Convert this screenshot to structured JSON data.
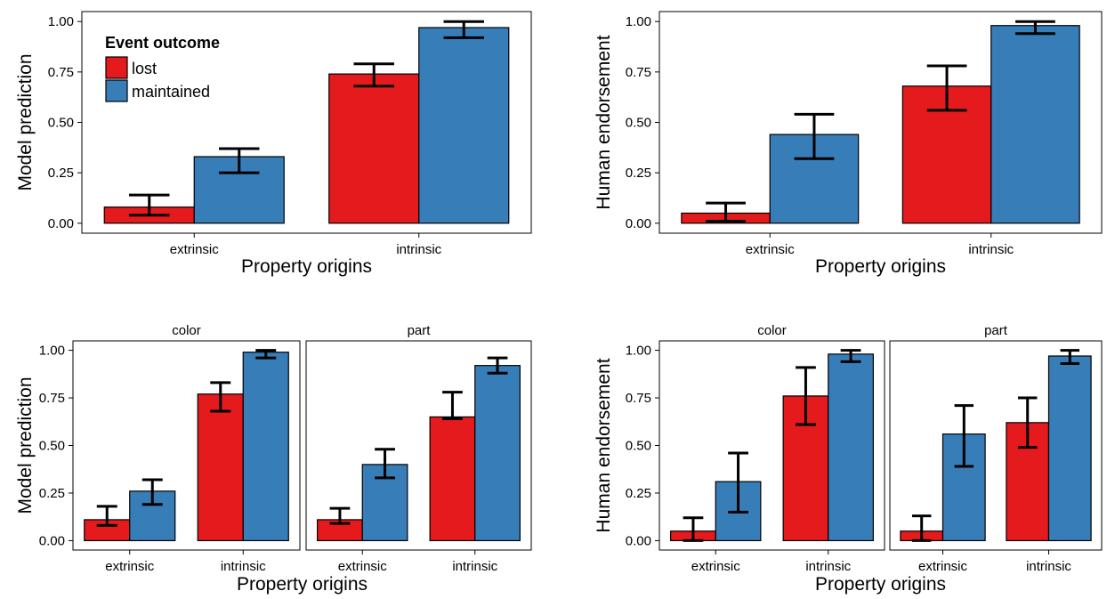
{
  "colors": {
    "lost": "#e41a1c",
    "maintained": "#377eb8"
  },
  "legend": {
    "title": "Event outcome",
    "items": [
      "lost",
      "maintained"
    ]
  },
  "chart_data": [
    {
      "type": "bar",
      "id": "top-left",
      "ylabel": "Model prediction",
      "xlabel": "Property origins",
      "ylim": [
        0,
        1
      ],
      "yticks": [
        "0.00",
        "0.25",
        "0.50",
        "0.75",
        "1.00"
      ],
      "legend_placement": "top-left",
      "facets": [
        {
          "strip": "",
          "categories": [
            "extrinsic",
            "intrinsic"
          ],
          "series": [
            {
              "name": "lost",
              "values": [
                0.08,
                0.74
              ],
              "err_low": [
                0.04,
                0.68
              ],
              "err_high": [
                0.14,
                0.79
              ]
            },
            {
              "name": "maintained",
              "values": [
                0.33,
                0.97
              ],
              "err_low": [
                0.25,
                0.92
              ],
              "err_high": [
                0.37,
                1.0
              ]
            }
          ]
        }
      ]
    },
    {
      "type": "bar",
      "id": "top-right",
      "ylabel": "Human endorsement",
      "xlabel": "Property origins",
      "ylim": [
        0,
        1
      ],
      "yticks": [
        "0.00",
        "0.25",
        "0.50",
        "0.75",
        "1.00"
      ],
      "facets": [
        {
          "strip": "",
          "categories": [
            "extrinsic",
            "intrinsic"
          ],
          "series": [
            {
              "name": "lost",
              "values": [
                0.05,
                0.68
              ],
              "err_low": [
                0.01,
                0.56
              ],
              "err_high": [
                0.1,
                0.78
              ]
            },
            {
              "name": "maintained",
              "values": [
                0.44,
                0.98
              ],
              "err_low": [
                0.32,
                0.94
              ],
              "err_high": [
                0.54,
                1.0
              ]
            }
          ]
        }
      ]
    },
    {
      "type": "bar",
      "id": "bottom-left",
      "ylabel": "Model prediction",
      "xlabel": "Property origins",
      "ylim": [
        0,
        1
      ],
      "yticks": [
        "0.00",
        "0.25",
        "0.50",
        "0.75",
        "1.00"
      ],
      "facets": [
        {
          "strip": "color",
          "categories": [
            "extrinsic",
            "intrinsic"
          ],
          "series": [
            {
              "name": "lost",
              "values": [
                0.11,
                0.77
              ],
              "err_low": [
                0.08,
                0.68
              ],
              "err_high": [
                0.18,
                0.83
              ]
            },
            {
              "name": "maintained",
              "values": [
                0.26,
                0.99
              ],
              "err_low": [
                0.19,
                0.96
              ],
              "err_high": [
                0.32,
                1.0
              ]
            }
          ]
        },
        {
          "strip": "part",
          "categories": [
            "extrinsic",
            "intrinsic"
          ],
          "series": [
            {
              "name": "lost",
              "values": [
                0.11,
                0.65
              ],
              "err_low": [
                0.09,
                0.64
              ],
              "err_high": [
                0.17,
                0.78
              ]
            },
            {
              "name": "maintained",
              "values": [
                0.4,
                0.92
              ],
              "err_low": [
                0.33,
                0.88
              ],
              "err_high": [
                0.48,
                0.96
              ]
            }
          ]
        }
      ]
    },
    {
      "type": "bar",
      "id": "bottom-right",
      "ylabel": "Human endorsement",
      "xlabel": "Property origins",
      "ylim": [
        0,
        1
      ],
      "yticks": [
        "0.00",
        "0.25",
        "0.50",
        "0.75",
        "1.00"
      ],
      "facets": [
        {
          "strip": "color",
          "categories": [
            "extrinsic",
            "intrinsic"
          ],
          "series": [
            {
              "name": "lost",
              "values": [
                0.05,
                0.76
              ],
              "err_low": [
                0.0,
                0.61
              ],
              "err_high": [
                0.12,
                0.91
              ]
            },
            {
              "name": "maintained",
              "values": [
                0.31,
                0.98
              ],
              "err_low": [
                0.15,
                0.94
              ],
              "err_high": [
                0.46,
                1.0
              ]
            }
          ]
        },
        {
          "strip": "part",
          "categories": [
            "extrinsic",
            "intrinsic"
          ],
          "series": [
            {
              "name": "lost",
              "values": [
                0.05,
                0.62
              ],
              "err_low": [
                0.0,
                0.49
              ],
              "err_high": [
                0.13,
                0.75
              ]
            },
            {
              "name": "maintained",
              "values": [
                0.56,
                0.97
              ],
              "err_low": [
                0.39,
                0.93
              ],
              "err_high": [
                0.71,
                1.0
              ]
            }
          ]
        }
      ]
    }
  ]
}
